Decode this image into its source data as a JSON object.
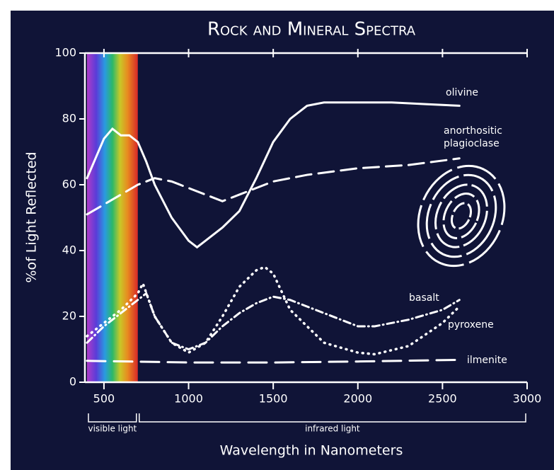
{
  "chart_data": {
    "type": "line",
    "title": "Rock and Mineral Spectra",
    "x_label": "Wavelength in Nanometers",
    "y_label": "%of Light Reflected",
    "xlim": [
      400,
      3000
    ],
    "xticks": [
      500,
      1000,
      1500,
      2000,
      2500,
      3000
    ],
    "ylim": [
      0,
      100
    ],
    "yticks": [
      0,
      20,
      40,
      60,
      80,
      100
    ],
    "regions": [
      {
        "label": "visible light",
        "range": [
          400,
          700
        ]
      },
      {
        "label": "infrared light",
        "range": [
          700,
          3000
        ]
      }
    ],
    "series": [
      {
        "name": "olivine",
        "color": "#ffffff",
        "dash": "solid",
        "x": [
          400,
          450,
          500,
          550,
          600,
          650,
          700,
          750,
          800,
          900,
          1000,
          1050,
          1100,
          1200,
          1300,
          1400,
          1500,
          1600,
          1700,
          1800,
          2000,
          2200,
          2400,
          2600
        ],
        "values": [
          62,
          68,
          74,
          77,
          75,
          75,
          73,
          67,
          60,
          50,
          43,
          41,
          43,
          47,
          52,
          62,
          73,
          80,
          84,
          85,
          85,
          85,
          84.5,
          84
        ]
      },
      {
        "name": "anorthositic plagioclase",
        "color": "#ffffff",
        "dash": "dashed",
        "x": [
          400,
          500,
          600,
          700,
          800,
          900,
          1000,
          1100,
          1200,
          1300,
          1400,
          1500,
          1700,
          2000,
          2300,
          2600
        ],
        "values": [
          51,
          54,
          57,
          60,
          62,
          61,
          59,
          57,
          55,
          57,
          59,
          61,
          63,
          65,
          66,
          68
        ]
      },
      {
        "name": "basalt",
        "color": "#ffffff",
        "dash": "dotted",
        "x": [
          400,
          500,
          600,
          700,
          730,
          800,
          900,
          1000,
          1100,
          1200,
          1300,
          1400,
          1450,
          1500,
          1600,
          1800,
          2000,
          2100,
          2300,
          2500,
          2600
        ],
        "values": [
          14,
          18,
          22,
          27,
          30,
          20,
          12,
          9,
          12,
          20,
          29,
          34,
          35,
          33,
          22,
          12,
          9,
          8.5,
          11,
          18,
          23
        ]
      },
      {
        "name": "pyroxene",
        "color": "#ffffff",
        "dash": "dashdot",
        "x": [
          400,
          500,
          600,
          700,
          750,
          800,
          900,
          1000,
          1100,
          1200,
          1300,
          1400,
          1500,
          1600,
          1800,
          2000,
          2100,
          2300,
          2500,
          2600
        ],
        "values": [
          12,
          17,
          21,
          25,
          27,
          20,
          12,
          10,
          12,
          17,
          21,
          24,
          26,
          25,
          21,
          17,
          17,
          19,
          22,
          25
        ]
      },
      {
        "name": "ilmenite",
        "color": "#ffffff",
        "dash": "longdash",
        "x": [
          400,
          1000,
          1500,
          2000,
          2600
        ],
        "values": [
          6.5,
          6,
          6,
          6.3,
          6.8
        ]
      }
    ]
  }
}
